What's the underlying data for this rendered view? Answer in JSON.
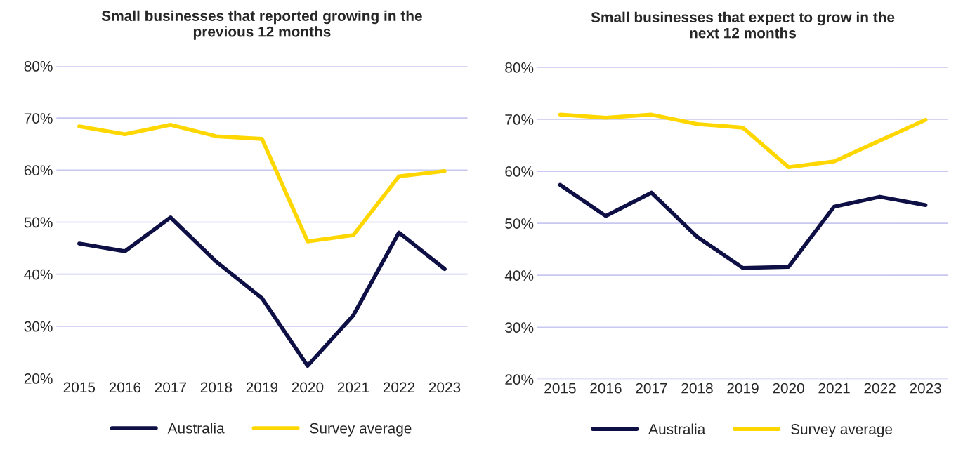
{
  "chart_data": [
    {
      "type": "line",
      "title": "Small businesses that reported growing in the\nprevious 12 months",
      "categories": [
        "2015",
        "2016",
        "2017",
        "2018",
        "2019",
        "2020",
        "2021",
        "2022",
        "2023"
      ],
      "series": [
        {
          "name": "Australia",
          "color": "#0d0f45",
          "values": [
            45.9,
            44.4,
            50.9,
            42.4,
            35.4,
            22.4,
            32.1,
            48.0,
            41.0
          ]
        },
        {
          "name": "Survey average",
          "color": "#ffd700",
          "values": [
            68.4,
            66.9,
            68.7,
            66.5,
            66.0,
            46.3,
            47.5,
            58.8,
            59.8
          ]
        }
      ],
      "ylim": [
        20,
        80
      ],
      "yticks": [
        {
          "value": 20,
          "label": "20%"
        },
        {
          "value": 30,
          "label": "30%"
        },
        {
          "value": 40,
          "label": "40%"
        },
        {
          "value": 50,
          "label": "50%"
        },
        {
          "value": 60,
          "label": "60%"
        },
        {
          "value": 70,
          "label": "70%"
        },
        {
          "value": 80,
          "label": "80%"
        }
      ],
      "grid": "y",
      "legend": "bottom",
      "marker": "none",
      "line_style": "solid"
    },
    {
      "type": "line",
      "title": "Small businesses that expect to grow in the\nnext 12 months",
      "categories": [
        "2015",
        "2016",
        "2017",
        "2018",
        "2019",
        "2020",
        "2021",
        "2022",
        "2023"
      ],
      "series": [
        {
          "name": "Australia",
          "color": "#0d0f45",
          "values": [
            57.4,
            51.4,
            55.9,
            47.4,
            41.4,
            41.6,
            53.2,
            55.1,
            53.5
          ]
        },
        {
          "name": "Survey average",
          "color": "#ffd700",
          "values": [
            70.9,
            70.3,
            70.9,
            69.1,
            68.4,
            60.8,
            61.9,
            65.9,
            69.9
          ]
        }
      ],
      "ylim": [
        20,
        80
      ],
      "yticks": [
        {
          "value": 20,
          "label": "20%"
        },
        {
          "value": 30,
          "label": "30%"
        },
        {
          "value": 40,
          "label": "40%"
        },
        {
          "value": 50,
          "label": "50%"
        },
        {
          "value": 60,
          "label": "60%"
        },
        {
          "value": 70,
          "label": "70%"
        },
        {
          "value": 80,
          "label": "80%"
        }
      ],
      "grid": "y",
      "legend": "bottom",
      "marker": "none",
      "line_style": "solid"
    }
  ]
}
